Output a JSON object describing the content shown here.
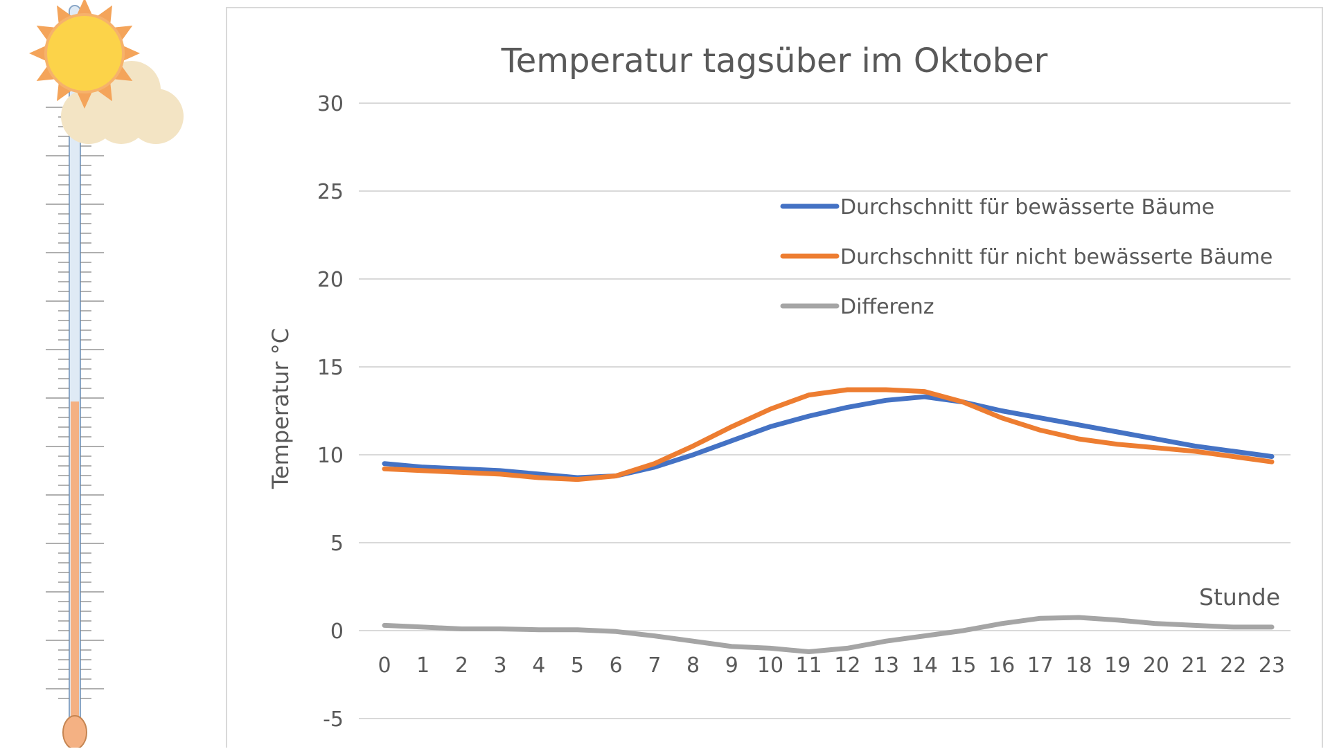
{
  "chart_data": {
    "type": "line",
    "title": "Temperatur tagsüber im Oktober",
    "xlabel": "Stunde",
    "ylabel": "Temperatur °C",
    "ylim": [
      -5,
      30
    ],
    "y_ticks": [
      "-5",
      "0",
      "5",
      "10",
      "15",
      "20",
      "25",
      "30"
    ],
    "categories": [
      "0",
      "1",
      "2",
      "3",
      "4",
      "5",
      "6",
      "7",
      "8",
      "9",
      "10",
      "11",
      "12",
      "13",
      "14",
      "15",
      "16",
      "17",
      "18",
      "19",
      "20",
      "21",
      "22",
      "23"
    ],
    "grid": true,
    "legend_position": "top-right",
    "series": [
      {
        "name": "Durchschnitt für bewässerte Bäume",
        "color": "#4472C4",
        "values": [
          9.5,
          9.3,
          9.2,
          9.1,
          8.9,
          8.7,
          8.8,
          9.3,
          10.0,
          10.8,
          11.6,
          12.2,
          12.7,
          13.1,
          13.3,
          13.0,
          12.5,
          12.1,
          11.7,
          11.3,
          10.9,
          10.5,
          10.2,
          9.9
        ]
      },
      {
        "name": "Durchschnitt für nicht bewässerte Bäume",
        "color": "#ED7D31",
        "values": [
          9.2,
          9.1,
          9.0,
          8.9,
          8.7,
          8.6,
          8.8,
          9.5,
          10.5,
          11.6,
          12.6,
          13.4,
          13.7,
          13.7,
          13.6,
          13.0,
          12.1,
          11.4,
          10.9,
          10.6,
          10.4,
          10.2,
          9.9,
          9.6
        ]
      },
      {
        "name": "Differenz",
        "color": "#A5A5A5",
        "values": [
          0.3,
          0.2,
          0.1,
          0.1,
          0.05,
          0.05,
          -0.05,
          -0.3,
          -0.6,
          -0.9,
          -1.0,
          -1.2,
          -1.0,
          -0.6,
          -0.3,
          0.0,
          0.4,
          0.7,
          0.75,
          0.6,
          0.4,
          0.3,
          0.2,
          0.2
        ]
      }
    ]
  }
}
